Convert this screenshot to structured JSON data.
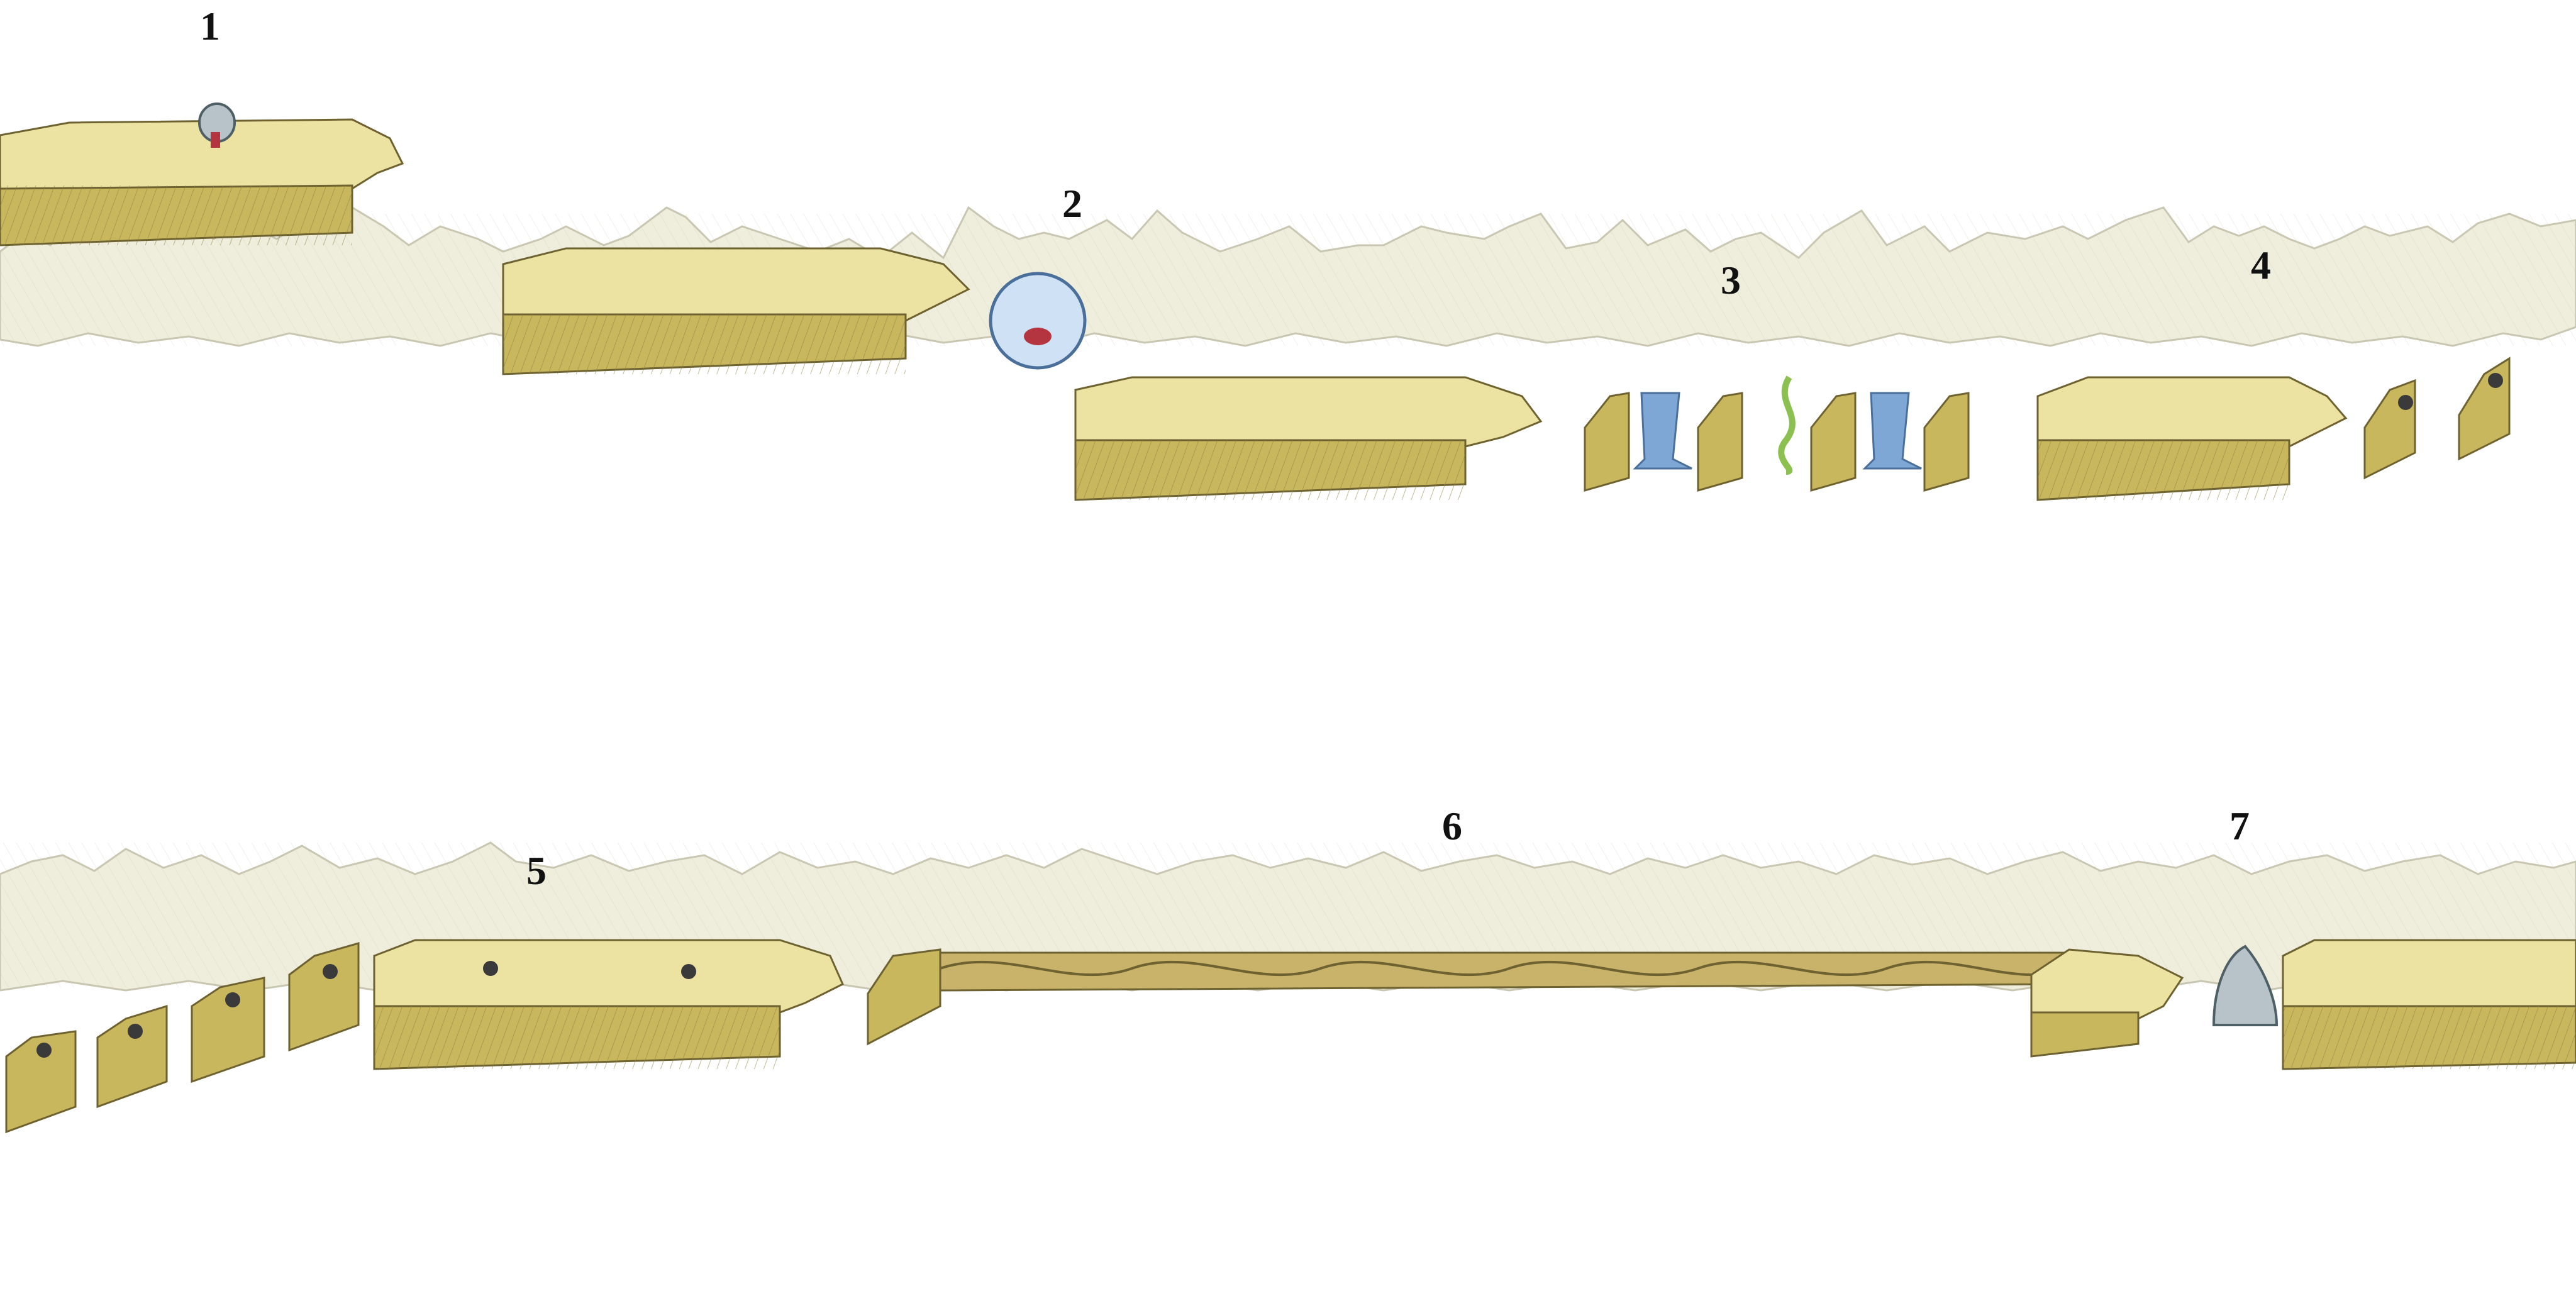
{
  "level_sheet": {
    "sections": [
      {
        "id": "1",
        "label": "1"
      },
      {
        "id": "2",
        "label": "2"
      },
      {
        "id": "3",
        "label": "3"
      },
      {
        "id": "4",
        "label": "4"
      },
      {
        "id": "5",
        "label": "5"
      },
      {
        "id": "6",
        "label": "6"
      },
      {
        "id": "7",
        "label": "7"
      }
    ]
  },
  "palette": {
    "platform_top": "#ece3a3",
    "platform_side": "#c9b75e",
    "platform_stroke": "#6d6230",
    "background_rock": "#efeedd",
    "background_rock_stroke": "#c9c6b2",
    "water": "#7ea7d6",
    "vine": "#8cc152",
    "bridge": "#c9b36a",
    "creature_grey": "#b7c3c9",
    "creature_red": "#b4343f",
    "spider": "#3a3a3a"
  },
  "icons": [
    "cannon-icon",
    "bubble-creature-icon",
    "waterfall-icon",
    "vine-icon",
    "spider-icon",
    "shark-fin-icon",
    "bridge-icon"
  ]
}
